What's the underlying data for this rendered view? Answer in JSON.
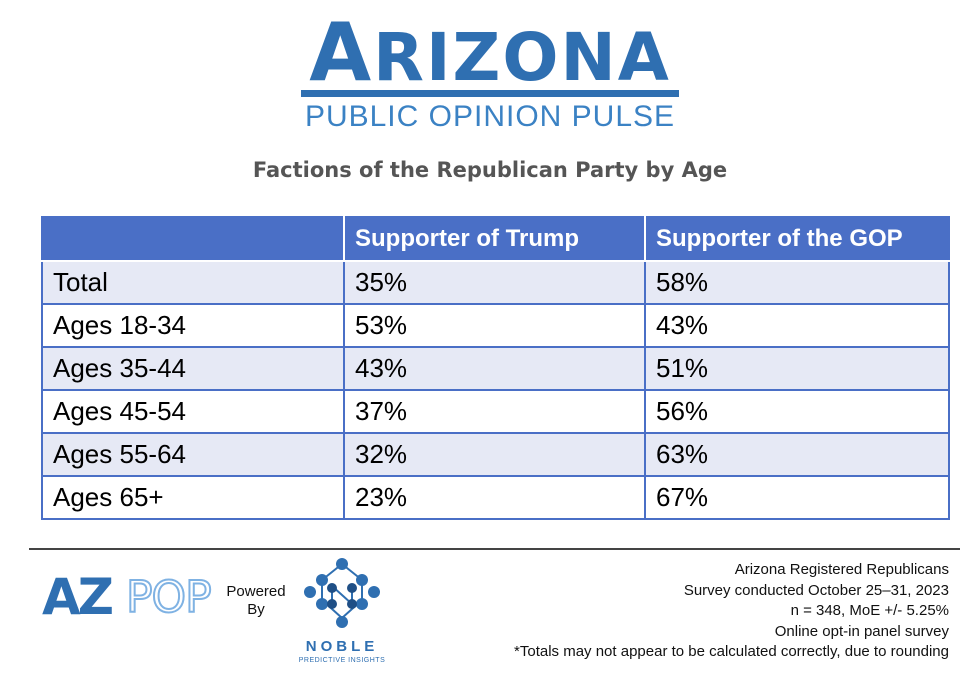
{
  "header": {
    "title_initial": "A",
    "title_rest": "RIZONA",
    "subtitle": "PUBLIC OPINION PULSE"
  },
  "chart_title": "Factions of the Republican Party by Age",
  "table": {
    "columns": [
      "",
      "Supporter of Trump",
      "Supporter of the GOP"
    ],
    "rows": [
      {
        "label": "Total",
        "trump": "35%",
        "gop": "58%"
      },
      {
        "label": "Ages 18-34",
        "trump": "53%",
        "gop": "43%"
      },
      {
        "label": "Ages 35-44",
        "trump": "43%",
        "gop": "51%"
      },
      {
        "label": "Ages 45-54",
        "trump": "37%",
        "gop": "56%"
      },
      {
        "label": "Ages 55-64",
        "trump": "32%",
        "gop": "63%"
      },
      {
        "label": "Ages 65+",
        "trump": "23%",
        "gop": "67%"
      }
    ]
  },
  "footer": {
    "azpop_logo": {
      "part1": "AZ",
      "part2": "POP"
    },
    "powered_by": {
      "line1": "Powered",
      "line2": "By"
    },
    "noble_logo": {
      "name": "NOBLE",
      "tagline": "PREDICTIVE INSIGHTS"
    },
    "notes": [
      "Arizona Registered Republicans",
      "Survey conducted October 25–31, 2023",
      "n = 348, MoE +/- 5.25%",
      "Online opt-in panel survey",
      "*Totals may not appear to be calculated correctly, due to rounding"
    ]
  },
  "colors": {
    "brand_blue": "#2f6fb1",
    "header_fill": "#4a6fc6",
    "row_shade": "#e6e9f5",
    "azpop_light": "#7fb2e3",
    "title_gray": "#555555"
  }
}
